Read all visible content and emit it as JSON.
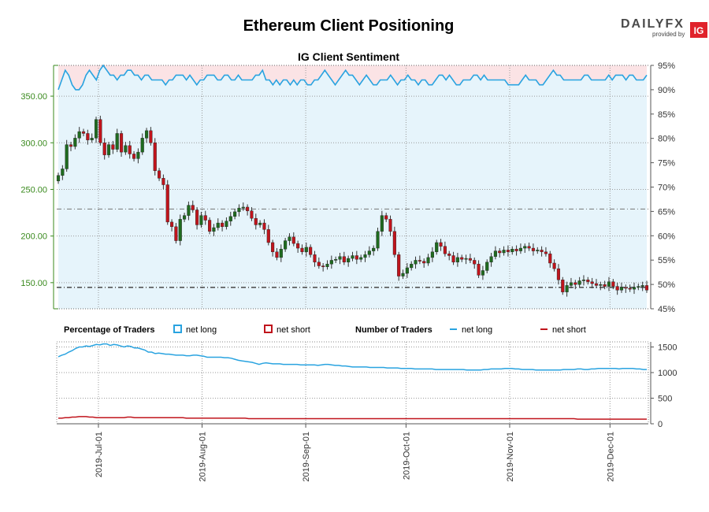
{
  "title": "Ethereum Client Positioning",
  "subtitle": "IG Client Sentiment",
  "logo": {
    "word_left": "DAILY",
    "word_right": "FX",
    "provided_by": "provided by",
    "badge": "IG"
  },
  "colors": {
    "candle_up": "#1f6b1f",
    "candle_down": "#c0141c",
    "candle_wick": "#333333",
    "long_line": "#29a3e0",
    "short_line": "#c0141c",
    "long_fill": "#e6f4fb",
    "short_fill": "#fbe3e5",
    "price_axis": "#3a8a1e"
  },
  "legend": {
    "pct_title": "Percentage of Traders",
    "pct_long": "net long",
    "pct_short": "net short",
    "num_title": "Number of Traders",
    "num_long": "net long",
    "num_short": "net short"
  },
  "chart_data": {
    "type": "candlestick",
    "price_axis": {
      "min": 122,
      "max": 383,
      "ticks": [
        150,
        200,
        250,
        300,
        350
      ],
      "tick_labels": [
        "150.00",
        "200.00",
        "250.00",
        "300.00",
        "350.00"
      ]
    },
    "pct_axis": {
      "min": 45,
      "max": 95,
      "ticks": [
        45,
        50,
        55,
        60,
        65,
        70,
        75,
        80,
        85,
        90,
        95
      ],
      "tick_labels": [
        "45%",
        "50%",
        "55%",
        "60%",
        "65%",
        "70%",
        "75%",
        "80%",
        "85%",
        "90%",
        "95%"
      ]
    },
    "count_axis": {
      "min": 0,
      "max": 1600,
      "ticks": [
        0,
        500,
        1000,
        1500
      ],
      "tick_labels": [
        "0",
        "500",
        "1000",
        "1500"
      ]
    },
    "date_range": {
      "start": "2019-06-19",
      "end": "2019-12-13"
    },
    "x_ticks": [
      {
        "day": 12,
        "label": "2019-Jul-01"
      },
      {
        "day": 43,
        "label": "2019-Aug-01"
      },
      {
        "day": 74,
        "label": "2019-Sep-01"
      },
      {
        "day": 104,
        "label": "2019-Oct-01"
      },
      {
        "day": 135,
        "label": "2019-Nov-01"
      },
      {
        "day": 165,
        "label": "2019-Dec-01"
      }
    ],
    "ref_lines": [
      {
        "value": 229,
        "style": "dashdot"
      },
      {
        "value": 145,
        "style": "dashdot-bold"
      }
    ],
    "close": [
      265,
      272,
      298,
      296,
      305,
      312,
      310,
      303,
      305,
      325,
      300,
      287,
      298,
      293,
      310,
      290,
      297,
      288,
      283,
      290,
      305,
      313,
      300,
      270,
      262,
      255,
      215,
      210,
      195,
      218,
      222,
      233,
      228,
      212,
      222,
      217,
      205,
      209,
      214,
      210,
      216,
      221,
      226,
      230,
      231,
      227,
      219,
      212,
      214,
      207,
      193,
      183,
      177,
      186,
      195,
      199,
      192,
      187,
      183,
      188,
      180,
      172,
      168,
      167,
      170,
      174,
      175,
      178,
      172,
      176,
      179,
      175,
      177,
      180,
      184,
      187,
      205,
      222,
      218,
      205,
      180,
      157,
      160,
      166,
      170,
      174,
      173,
      171,
      177,
      183,
      193,
      189,
      181,
      179,
      172,
      177,
      175,
      176,
      174,
      170,
      158,
      163,
      172,
      178,
      184,
      182,
      185,
      183,
      186,
      184,
      187,
      189,
      187,
      184,
      185,
      183,
      181,
      171,
      165,
      153,
      140,
      147,
      150,
      148,
      152,
      153,
      151,
      149,
      147,
      148,
      146,
      151,
      146,
      142,
      145,
      144,
      143,
      145,
      146,
      147,
      142
    ],
    "sentiment_pct": [
      90,
      92,
      94,
      93,
      91,
      90,
      90,
      91,
      93,
      94,
      93,
      92,
      94,
      95,
      94,
      93,
      93,
      92,
      93,
      93,
      94,
      94,
      93,
      93,
      92,
      93,
      93,
      92,
      92,
      92,
      92,
      91,
      92,
      92,
      93,
      93,
      93,
      92,
      93,
      92,
      91,
      92,
      92,
      93,
      93,
      93,
      92,
      92,
      93,
      93,
      92,
      92,
      93,
      92,
      92,
      92,
      92,
      93,
      93,
      94,
      92,
      92,
      91,
      92,
      91,
      92,
      92,
      91,
      92,
      91,
      92,
      92,
      91,
      91,
      92,
      92,
      93,
      94,
      93,
      92,
      91,
      92,
      93,
      94,
      93,
      93,
      92,
      91,
      92,
      93,
      92,
      91,
      91,
      92,
      92,
      92,
      93,
      92,
      91,
      92,
      92,
      93,
      92,
      92,
      91,
      92,
      92,
      91,
      91,
      92,
      93,
      93,
      92,
      93,
      92,
      91,
      91,
      92,
      92,
      92,
      93,
      93,
      92,
      93,
      92,
      92,
      92,
      92,
      92,
      92,
      91,
      91,
      91,
      91,
      92,
      93,
      92,
      92,
      92,
      91,
      91,
      92,
      93,
      94,
      93,
      93,
      92,
      92,
      92,
      92,
      92,
      92,
      93,
      93,
      92,
      92,
      92,
      92,
      92,
      93,
      92,
      93,
      93,
      93,
      92,
      93,
      93,
      92,
      92,
      92,
      93
    ],
    "long_count": [
      1310,
      1340,
      1360,
      1400,
      1430,
      1470,
      1500,
      1500,
      1520,
      1510,
      1530,
      1550,
      1540,
      1560,
      1560,
      1530,
      1550,
      1540,
      1520,
      1500,
      1520,
      1510,
      1480,
      1480,
      1460,
      1440,
      1400,
      1400,
      1370,
      1380,
      1370,
      1360,
      1360,
      1350,
      1340,
      1340,
      1340,
      1330,
      1330,
      1340,
      1340,
      1330,
      1320,
      1300,
      1300,
      1300,
      1300,
      1300,
      1290,
      1290,
      1280,
      1260,
      1240,
      1230,
      1220,
      1210,
      1200,
      1180,
      1160,
      1180,
      1190,
      1180,
      1170,
      1170,
      1170,
      1160,
      1160,
      1160,
      1160,
      1160,
      1150,
      1150,
      1150,
      1150,
      1150,
      1140,
      1150,
      1160,
      1160,
      1150,
      1140,
      1140,
      1130,
      1130,
      1120,
      1110,
      1110,
      1110,
      1110,
      1110,
      1100,
      1100,
      1100,
      1100,
      1100,
      1090,
      1090,
      1090,
      1090,
      1080,
      1080,
      1080,
      1080,
      1070,
      1070,
      1070,
      1070,
      1070,
      1070,
      1060,
      1060,
      1060,
      1060,
      1060,
      1060,
      1060,
      1060,
      1060,
      1050,
      1050,
      1050,
      1050,
      1050,
      1060,
      1060,
      1070,
      1070,
      1070,
      1070,
      1080,
      1080,
      1080,
      1070,
      1070,
      1060,
      1060,
      1060,
      1060,
      1050,
      1050,
      1050,
      1050,
      1050,
      1050,
      1050,
      1050,
      1060,
      1060,
      1060,
      1060,
      1070,
      1070,
      1060,
      1060,
      1070,
      1070,
      1080,
      1080,
      1080,
      1080,
      1080,
      1080,
      1070,
      1080,
      1080,
      1080,
      1080,
      1070,
      1070,
      1060,
      1060
    ],
    "short_count": [
      110,
      110,
      120,
      120,
      130,
      130,
      140,
      140,
      140,
      130,
      130,
      120,
      120,
      120,
      120,
      120,
      120,
      120,
      120,
      120,
      130,
      130,
      120,
      120,
      120,
      120,
      120,
      120,
      120,
      120,
      120,
      120,
      120,
      120,
      120,
      120,
      120,
      110,
      110,
      110,
      110,
      110,
      110,
      110,
      110,
      110,
      110,
      110,
      110,
      110,
      110,
      110,
      110,
      110,
      110,
      100,
      100,
      100,
      100,
      100,
      100,
      100,
      100,
      100,
      100,
      100,
      100,
      100,
      100,
      100,
      100,
      100,
      100,
      100,
      100,
      100,
      100,
      100,
      100,
      100,
      100,
      100,
      100,
      100,
      100,
      100,
      100,
      100,
      100,
      100,
      100,
      100,
      100,
      100,
      100,
      100,
      100,
      100,
      100,
      100,
      100,
      100,
      100,
      100,
      100,
      100,
      100,
      100,
      100,
      100,
      100,
      100,
      100,
      100,
      100,
      100,
      100,
      100,
      100,
      100,
      100,
      100,
      100,
      100,
      100,
      100,
      100,
      100,
      100,
      100,
      100,
      100,
      100,
      100,
      100,
      100,
      100,
      100,
      100,
      100,
      100,
      100,
      100,
      100,
      100,
      100,
      100,
      100,
      100,
      100,
      90,
      90,
      90,
      90,
      90,
      90,
      90,
      90,
      90,
      90,
      90,
      90,
      90,
      90,
      90,
      90,
      90,
      90,
      90,
      90,
      90
    ]
  }
}
